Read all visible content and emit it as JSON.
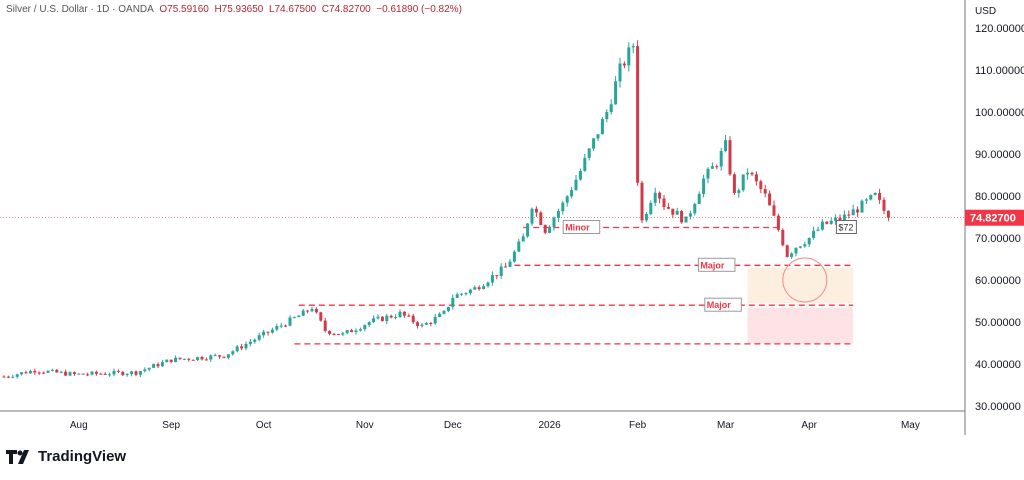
{
  "legend": {
    "symbol": "Silver / U.S. Dollar · 1D · OANDA",
    "open": "O75.59160",
    "high": "H75.93650",
    "low": "L74.67500",
    "close": "C74.82700",
    "change": "−0.61890 (−0.82%)"
  },
  "brand": "TradingView",
  "colors": {
    "up": "#26a69a",
    "down": "#d23a47",
    "accent": "#f23645",
    "zoneOrange": "#fdefe0",
    "zonePink": "#fde3e6"
  },
  "chart_data": {
    "type": "candlestick",
    "title": "Silver / U.S. Dollar · 1D · OANDA",
    "ylabel": "USD",
    "ylim": [
      28,
      122
    ],
    "yticks": [
      "120.00000",
      "110.00000",
      "100.00000",
      "90.00000",
      "80.00000",
      "70.00000",
      "60.00000",
      "50.00000",
      "40.00000",
      "30.00000"
    ],
    "ytick_values": [
      120,
      110,
      100,
      90,
      80,
      70,
      60,
      50,
      40,
      30
    ],
    "x_ticks": [
      {
        "label": "Aug",
        "day": 17
      },
      {
        "label": "Sep",
        "day": 38
      },
      {
        "label": "Oct",
        "day": 59
      },
      {
        "label": "Nov",
        "day": 82
      },
      {
        "label": "Dec",
        "day": 102
      },
      {
        "label": "2026",
        "day": 124
      },
      {
        "label": "Feb",
        "day": 144
      },
      {
        "label": "Mar",
        "day": 164
      },
      {
        "label": "Apr",
        "day": 183
      },
      {
        "label": "May",
        "day": 206
      }
    ],
    "close_path": [
      [
        0,
        37
      ],
      [
        7,
        38.5
      ],
      [
        16,
        37.5
      ],
      [
        30,
        38
      ],
      [
        38,
        41
      ],
      [
        50,
        42
      ],
      [
        59,
        47
      ],
      [
        68,
        52
      ],
      [
        70,
        53.5
      ],
      [
        73,
        48
      ],
      [
        77,
        47
      ],
      [
        83,
        50
      ],
      [
        90,
        52
      ],
      [
        95,
        49
      ],
      [
        100,
        52
      ],
      [
        102,
        56
      ],
      [
        107,
        58
      ],
      [
        114,
        63
      ],
      [
        118,
        70
      ],
      [
        120,
        78
      ],
      [
        123,
        72
      ],
      [
        127,
        78
      ],
      [
        131,
        86
      ],
      [
        134,
        93
      ],
      [
        137,
        100
      ],
      [
        140,
        110
      ],
      [
        142,
        114
      ],
      [
        143,
        116
      ],
      [
        144,
        84
      ],
      [
        145,
        74
      ],
      [
        148,
        82
      ],
      [
        150,
        78
      ],
      [
        155,
        74
      ],
      [
        159,
        84
      ],
      [
        162,
        88
      ],
      [
        164,
        92
      ],
      [
        166,
        80
      ],
      [
        169,
        86
      ],
      [
        173,
        80
      ],
      [
        176,
        72
      ],
      [
        178,
        66
      ],
      [
        180,
        68
      ],
      [
        183,
        70
      ],
      [
        186,
        73
      ],
      [
        191,
        75
      ],
      [
        194,
        77
      ],
      [
        198,
        80
      ],
      [
        201,
        74.8
      ]
    ],
    "last_price": "74.82700",
    "last_value": 74.827,
    "levels": [
      {
        "label": "Minor",
        "price": 72.5,
        "from": 118,
        "to": 176
      },
      {
        "label": "Major",
        "price": 63.5,
        "from": 116,
        "to": 193
      },
      {
        "label": "Major",
        "price": 54,
        "from": 67,
        "to": 193
      },
      {
        "label": "",
        "price": 44.8,
        "from": 66,
        "to": 193
      }
    ],
    "zones": [
      {
        "from": 169,
        "to": 193,
        "top": 63,
        "bottom": 54.5,
        "color": "orange"
      },
      {
        "from": 169,
        "to": 193,
        "top": 53.5,
        "bottom": 44.8,
        "color": "pink"
      }
    ],
    "annotations": [
      {
        "text": "$72",
        "day": 191,
        "price": 72.5
      }
    ],
    "circle": {
      "day": 182,
      "price": 60
    }
  }
}
